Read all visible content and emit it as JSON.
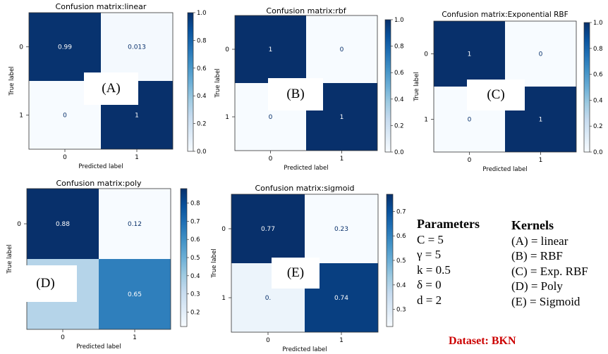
{
  "chart_data": [
    {
      "id": "A",
      "type": "heatmap",
      "title": "Confusion matrix:linear",
      "xlabel": "Predicted label",
      "ylabel": "True label",
      "x_ticks": [
        "0",
        "1"
      ],
      "y_ticks": [
        "0",
        "1"
      ],
      "matrix": [
        [
          0.99,
          0.013
        ],
        [
          0,
          1
        ]
      ],
      "cell_labels": [
        [
          "0.99",
          "0.013"
        ],
        [
          "0",
          "1"
        ]
      ],
      "colormap": "Blues",
      "colorbar": {
        "range": [
          0.0,
          1.0
        ],
        "ticks": [
          "0.0",
          "0.2",
          "0.4",
          "0.6",
          "0.8",
          "1.0"
        ],
        "tick_values": [
          0,
          0.2,
          0.4,
          0.6,
          0.8,
          1.0
        ]
      },
      "overlay_label": "(A)"
    },
    {
      "id": "B",
      "type": "heatmap",
      "title": "Confusion matrix:rbf",
      "xlabel": "Predicted label",
      "ylabel": "True label",
      "x_ticks": [
        "0",
        "1"
      ],
      "y_ticks": [
        "0",
        "1"
      ],
      "matrix": [
        [
          1,
          0
        ],
        [
          0,
          1
        ]
      ],
      "cell_labels": [
        [
          "1",
          "0"
        ],
        [
          "0",
          "1"
        ]
      ],
      "colormap": "Blues",
      "colorbar": {
        "range": [
          0.0,
          1.0
        ],
        "ticks": [
          "0.0",
          "0.2",
          "0.4",
          "0.6",
          "0.8",
          "1.0"
        ],
        "tick_values": [
          0,
          0.2,
          0.4,
          0.6,
          0.8,
          1.0
        ]
      },
      "overlay_label": "(B)"
    },
    {
      "id": "C",
      "type": "heatmap",
      "title": "Confusion matrix:Exponential RBF",
      "xlabel": "Predicted label",
      "ylabel": "True label",
      "x_ticks": [
        "0",
        "1"
      ],
      "y_ticks": [
        "0",
        "1"
      ],
      "matrix": [
        [
          1,
          0
        ],
        [
          0,
          1
        ]
      ],
      "cell_labels": [
        [
          "1",
          "0"
        ],
        [
          "0",
          "1"
        ]
      ],
      "colormap": "Blues",
      "colorbar": {
        "range": [
          0.0,
          1.0
        ],
        "ticks": [
          "0.0",
          "0.2",
          "0.4",
          "0.6",
          "0.8",
          "1.0"
        ],
        "tick_values": [
          0,
          0.2,
          0.4,
          0.6,
          0.8,
          1.0
        ]
      },
      "overlay_label": "(C)"
    },
    {
      "id": "D",
      "type": "heatmap",
      "title": "Confusion matrix:poly",
      "xlabel": "Predicted label",
      "ylabel": "True label",
      "x_ticks": [
        "0",
        "1"
      ],
      "y_ticks": [
        "0",
        "1"
      ],
      "matrix": [
        [
          0.88,
          0.12
        ],
        [
          0.35,
          0.65
        ]
      ],
      "cell_labels": [
        [
          "0.88",
          "0.12"
        ],
        [
          "",
          "0.65"
        ]
      ],
      "colormap": "Blues",
      "colorbar": {
        "range": [
          0.12,
          0.88
        ],
        "ticks": [
          "0.2",
          "0.3",
          "0.4",
          "0.5",
          "0.6",
          "0.7",
          "0.8"
        ],
        "tick_values": [
          0.2,
          0.3,
          0.4,
          0.5,
          0.6,
          0.7,
          0.8
        ]
      },
      "overlay_label": "(D)"
    },
    {
      "id": "E",
      "type": "heatmap",
      "title": "Confusion matrix:sigmoid",
      "xlabel": "Predicted label",
      "ylabel": "True label",
      "x_ticks": [
        "0",
        "1"
      ],
      "y_ticks": [
        "0",
        "1"
      ],
      "matrix": [
        [
          0.77,
          0.23
        ],
        [
          0.26,
          0.74
        ]
      ],
      "cell_labels": [
        [
          "0.77",
          "0.23"
        ],
        [
          "0.",
          "0.74"
        ]
      ],
      "colormap": "Blues",
      "colorbar": {
        "range": [
          0.23,
          0.77
        ],
        "ticks": [
          "0.3",
          "0.4",
          "0.5",
          "0.6",
          "0.7"
        ],
        "tick_values": [
          0.3,
          0.4,
          0.5,
          0.6,
          0.7
        ]
      },
      "overlay_label": "(E)"
    }
  ],
  "parameters": {
    "heading": "Parameters",
    "lines": [
      "C = 5",
      "γ = 5",
      "k = 0.5",
      "δ = 0",
      "d = 2"
    ]
  },
  "kernels": {
    "heading": "Kernels",
    "lines": [
      "(A) = linear",
      "(B) = RBF",
      "(C) = Exp. RBF",
      "(D) = Poly",
      "(E) = Sigmoid"
    ]
  },
  "dataset_label": "Dataset: BKN",
  "colors": {
    "dataset_label": "#cc0000",
    "text_light": "#ffffff",
    "text_dark": "#08306b"
  }
}
